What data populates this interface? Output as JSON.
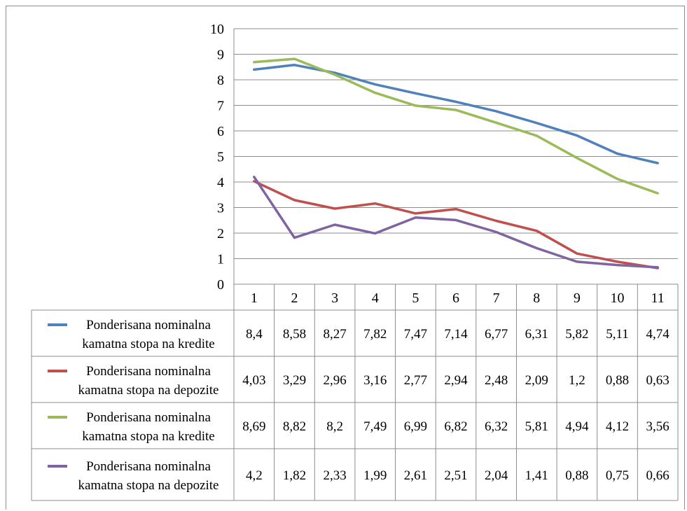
{
  "chart_data": {
    "type": "line",
    "categories": [
      "1",
      "2",
      "3",
      "4",
      "5",
      "6",
      "7",
      "8",
      "9",
      "10",
      "11"
    ],
    "ylim": [
      0,
      10
    ],
    "yticks": [
      "0",
      "1",
      "2",
      "3",
      "4",
      "5",
      "6",
      "7",
      "8",
      "9",
      "10"
    ],
    "grid": true,
    "legend": "data-table",
    "series": [
      {
        "name": "Ponderisana nominalna kamatna stopa na kredite",
        "color": "#4f81bd",
        "values": [
          8.4,
          8.58,
          8.27,
          7.82,
          7.47,
          7.14,
          6.77,
          6.31,
          5.82,
          5.11,
          4.74
        ],
        "labels": [
          "8,4",
          "8,58",
          "8,27",
          "7,82",
          "7,47",
          "7,14",
          "6,77",
          "6,31",
          "5,82",
          "5,11",
          "4,74"
        ]
      },
      {
        "name": "Ponderisana nominalna kamatna stopa na depozite",
        "color": "#c0504d",
        "values": [
          4.03,
          3.29,
          2.96,
          3.16,
          2.77,
          2.94,
          2.48,
          2.09,
          1.2,
          0.88,
          0.63
        ],
        "labels": [
          "4,03",
          "3,29",
          "2,96",
          "3,16",
          "2,77",
          "2,94",
          "2,48",
          "2,09",
          "1,2",
          "0,88",
          "0,63"
        ]
      },
      {
        "name": "Ponderisana nominalna kamatna stopa na kredite",
        "color": "#9bbb59",
        "values": [
          8.69,
          8.82,
          8.2,
          7.49,
          6.99,
          6.82,
          6.32,
          5.81,
          4.94,
          4.12,
          3.56
        ],
        "labels": [
          "8,69",
          "8,82",
          "8,2",
          "7,49",
          "6,99",
          "6,82",
          "6,32",
          "5,81",
          "4,94",
          "4,12",
          "3,56"
        ]
      },
      {
        "name": "Ponderisana nominalna kamatna stopa na depozite",
        "color": "#8064a2",
        "values": [
          4.2,
          1.82,
          2.33,
          1.99,
          2.61,
          2.51,
          2.04,
          1.41,
          0.88,
          0.75,
          0.66
        ],
        "labels": [
          "4,2",
          "1,82",
          "2,33",
          "1,99",
          "2,61",
          "2,51",
          "2,04",
          "1,41",
          "0,88",
          "0,75",
          "0,66"
        ]
      }
    ]
  }
}
